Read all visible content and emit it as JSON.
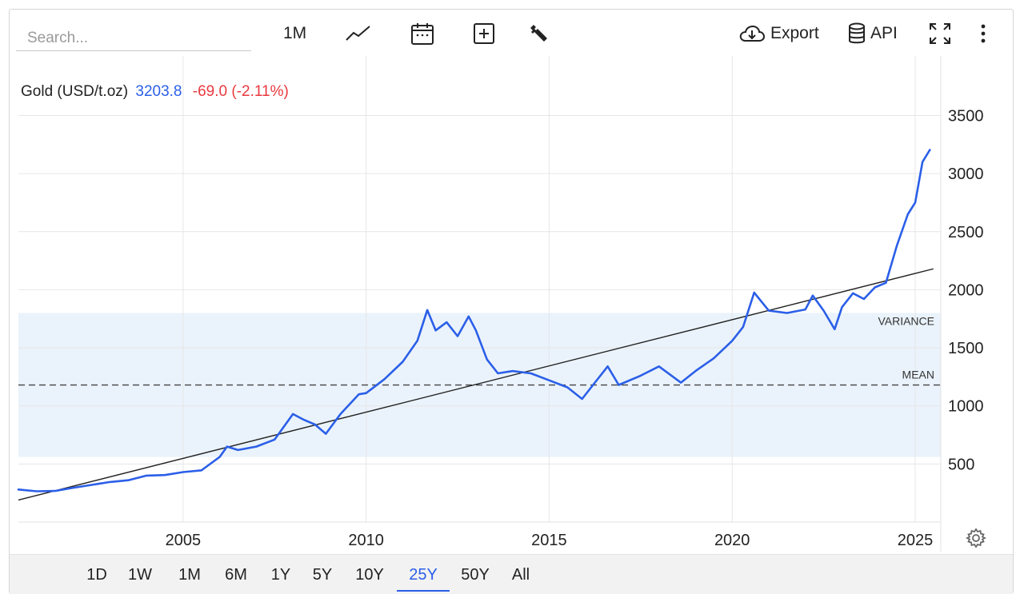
{
  "search": {
    "placeholder": "Search..."
  },
  "toolbar": {
    "interval_label": "1M",
    "export_label": "Export",
    "api_label": "API",
    "icons": [
      "line-chart-icon",
      "calendar-icon",
      "add-icon",
      "wrench-icon",
      "cloud-download-icon",
      "database-icon",
      "fullscreen-icon",
      "more-vertical-icon"
    ]
  },
  "legend": {
    "name": "Gold (USD/t.oz)",
    "last": "3203.8",
    "change": "-69.0 (-2.11%)"
  },
  "ranges": [
    {
      "label": "1D",
      "active": false
    },
    {
      "label": "1W",
      "active": false
    },
    {
      "label": "1M",
      "active": false
    },
    {
      "label": "6M",
      "active": false
    },
    {
      "label": "1Y",
      "active": false
    },
    {
      "label": "5Y",
      "active": false
    },
    {
      "label": "10Y",
      "active": false
    },
    {
      "label": "25Y",
      "active": true
    },
    {
      "label": "50Y",
      "active": false
    },
    {
      "label": "All",
      "active": false
    }
  ],
  "colors": {
    "series": "#2b5fe8",
    "change": "#e8393f",
    "band": "#eaf3fb",
    "trend": "#222222"
  },
  "chart_data": {
    "type": "line",
    "title": "",
    "xlabel": "",
    "ylabel": "",
    "xlim": [
      2000.5,
      2025.7
    ],
    "ylim": [
      0,
      3850
    ],
    "x_ticks": [
      2005,
      2010,
      2015,
      2020,
      2025
    ],
    "y_ticks": [
      500,
      1000,
      1500,
      2000,
      2500,
      3000,
      3500
    ],
    "grid": true,
    "series": [
      {
        "name": "Gold (USD/t.oz)",
        "x": [
          2000.5,
          2001.0,
          2001.5,
          2002.0,
          2002.5,
          2003.0,
          2003.5,
          2004.0,
          2004.5,
          2005.0,
          2005.5,
          2006.0,
          2006.2,
          2006.5,
          2007.0,
          2007.5,
          2008.0,
          2008.3,
          2008.6,
          2008.9,
          2009.3,
          2009.8,
          2010.0,
          2010.5,
          2011.0,
          2011.4,
          2011.67,
          2011.9,
          2012.2,
          2012.5,
          2012.8,
          2013.0,
          2013.3,
          2013.6,
          2014.0,
          2014.5,
          2015.0,
          2015.5,
          2015.9,
          2016.2,
          2016.6,
          2016.9,
          2017.5,
          2018.0,
          2018.6,
          2019.0,
          2019.5,
          2020.0,
          2020.3,
          2020.6,
          2021.0,
          2021.5,
          2022.0,
          2022.2,
          2022.5,
          2022.8,
          2023.0,
          2023.3,
          2023.6,
          2023.9,
          2024.2,
          2024.5,
          2024.8,
          2025.0,
          2025.2,
          2025.4
        ],
        "y": [
          280,
          265,
          268,
          295,
          320,
          345,
          360,
          400,
          405,
          430,
          445,
          560,
          650,
          620,
          650,
          710,
          930,
          880,
          840,
          760,
          930,
          1100,
          1110,
          1230,
          1380,
          1560,
          1825,
          1650,
          1720,
          1600,
          1770,
          1650,
          1400,
          1280,
          1300,
          1280,
          1220,
          1160,
          1060,
          1180,
          1340,
          1180,
          1260,
          1340,
          1200,
          1300,
          1410,
          1560,
          1680,
          1975,
          1820,
          1800,
          1830,
          1950,
          1820,
          1660,
          1850,
          1970,
          1920,
          2020,
          2060,
          2380,
          2650,
          2750,
          3100,
          3203.8
        ]
      }
    ],
    "overlays": {
      "trend_line": {
        "x": [
          2000.5,
          2025.5
        ],
        "y": [
          190,
          2180
        ]
      },
      "mean": {
        "label": "MEAN",
        "value": 1180
      },
      "variance": {
        "label": "VARIANCE",
        "low": 560,
        "high": 1800
      }
    }
  }
}
